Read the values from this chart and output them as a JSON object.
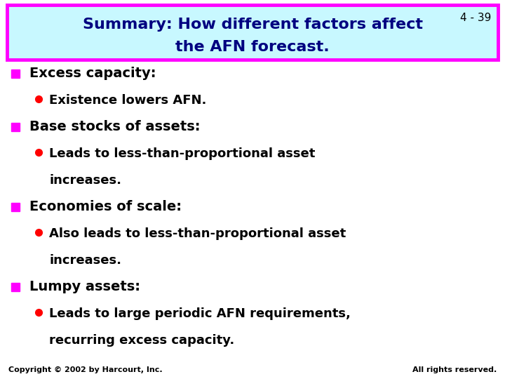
{
  "slide_number": "4 - 39",
  "title_line1": "Summary: How different factors affect",
  "title_line2": "the AFN forecast.",
  "title_bg_color": "#c8f8ff",
  "title_border_color": "#ff00ff",
  "title_text_color": "#000080",
  "background_color": "#ffffff",
  "slide_number_color": "#000000",
  "bullet_square_color": "#ff00ff",
  "bullet_circle_color": "#ff0000",
  "main_text_color": "#000000",
  "footer_left": "Copyright © 2002 by Harcourt, Inc.",
  "footer_right": "All rights reserved.",
  "footer_color": "#000000"
}
